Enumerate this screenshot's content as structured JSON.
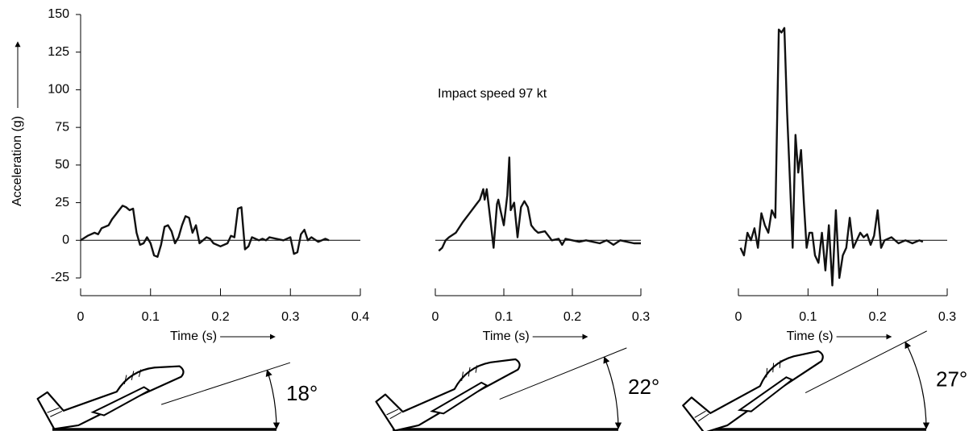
{
  "chart_data": [
    {
      "type": "line",
      "ylabel": "Acceleration (g)",
      "ylim": [
        -25,
        150
      ],
      "yticks": [
        -25,
        0,
        25,
        50,
        75,
        100,
        125,
        150
      ],
      "xlabel": "Time (s)",
      "xlim": [
        0,
        0.4
      ],
      "xticks": [
        0,
        0.1,
        0.2,
        0.3,
        0.4
      ],
      "color": "#111111",
      "angle": {
        "value": 18,
        "label": "18°"
      },
      "x": [
        0,
        0.01,
        0.02,
        0.025,
        0.03,
        0.04,
        0.045,
        0.05,
        0.055,
        0.06,
        0.065,
        0.07,
        0.075,
        0.08,
        0.085,
        0.09,
        0.095,
        0.1,
        0.105,
        0.11,
        0.115,
        0.12,
        0.125,
        0.13,
        0.135,
        0.14,
        0.145,
        0.15,
        0.155,
        0.16,
        0.165,
        0.17,
        0.175,
        0.18,
        0.185,
        0.19,
        0.2,
        0.21,
        0.215,
        0.22,
        0.225,
        0.23,
        0.235,
        0.24,
        0.245,
        0.25,
        0.255,
        0.26,
        0.265,
        0.27,
        0.28,
        0.29,
        0.3,
        0.305,
        0.31,
        0.315,
        0.32,
        0.325,
        0.33,
        0.34,
        0.35,
        0.355
      ],
      "values": [
        0,
        3,
        5,
        4,
        8,
        10,
        14,
        17,
        20,
        23,
        22,
        20,
        21,
        5,
        -3,
        -2,
        2,
        -2,
        -10,
        -11,
        -3,
        9,
        10,
        6,
        -2,
        2,
        10,
        16,
        15,
        5,
        10,
        -2,
        0,
        2,
        1,
        -2,
        -4,
        -2,
        3,
        2,
        21,
        22,
        -6,
        -4,
        2,
        1,
        0,
        1,
        0,
        2,
        1,
        0,
        2,
        -9,
        -8,
        4,
        7,
        0,
        2,
        -1,
        1,
        0
      ]
    },
    {
      "type": "line",
      "annotation": "Impact speed 97 kt",
      "ylim": [
        -25,
        150
      ],
      "xlabel": "Time (s)",
      "xlim": [
        0,
        0.3
      ],
      "xticks": [
        0,
        0.1,
        0.2,
        0.3
      ],
      "color": "#111111",
      "angle": {
        "value": 22,
        "label": "22°"
      },
      "x": [
        0.005,
        0.01,
        0.015,
        0.02,
        0.03,
        0.04,
        0.05,
        0.06,
        0.065,
        0.07,
        0.072,
        0.075,
        0.08,
        0.085,
        0.09,
        0.092,
        0.095,
        0.1,
        0.105,
        0.108,
        0.11,
        0.115,
        0.12,
        0.125,
        0.13,
        0.135,
        0.14,
        0.145,
        0.15,
        0.16,
        0.165,
        0.17,
        0.18,
        0.185,
        0.19,
        0.2,
        0.21,
        0.22,
        0.23,
        0.24,
        0.25,
        0.26,
        0.27,
        0.28,
        0.29,
        0.3
      ],
      "values": [
        -7,
        -5,
        0,
        2,
        5,
        12,
        18,
        24,
        27,
        34,
        27,
        34,
        15,
        -5,
        24,
        27,
        20,
        10,
        30,
        55,
        20,
        25,
        2,
        22,
        26,
        22,
        10,
        7,
        5,
        6,
        3,
        0,
        1,
        -3,
        1,
        0,
        -1,
        0,
        -1,
        -2,
        0,
        -3,
        0,
        -1,
        -2,
        -2
      ]
    },
    {
      "type": "line",
      "ylim": [
        -25,
        150
      ],
      "xlabel": "Time (s)",
      "xlim": [
        0,
        0.3
      ],
      "xticks": [
        0,
        0.1,
        0.2,
        0.3
      ],
      "color": "#111111",
      "angle": {
        "value": 27,
        "label": "27°"
      },
      "x": [
        0.003,
        0.008,
        0.013,
        0.018,
        0.023,
        0.028,
        0.033,
        0.038,
        0.043,
        0.048,
        0.053,
        0.058,
        0.062,
        0.066,
        0.07,
        0.074,
        0.078,
        0.082,
        0.086,
        0.09,
        0.094,
        0.098,
        0.102,
        0.106,
        0.11,
        0.115,
        0.12,
        0.125,
        0.13,
        0.135,
        0.14,
        0.145,
        0.15,
        0.155,
        0.16,
        0.165,
        0.17,
        0.175,
        0.18,
        0.185,
        0.19,
        0.195,
        0.2,
        0.205,
        0.21,
        0.22,
        0.23,
        0.24,
        0.25,
        0.26,
        0.265
      ],
      "values": [
        -5,
        -10,
        5,
        0,
        8,
        -5,
        18,
        10,
        5,
        20,
        15,
        140,
        138,
        141,
        85,
        40,
        -5,
        70,
        45,
        60,
        25,
        -5,
        5,
        5,
        -10,
        -15,
        5,
        -20,
        10,
        -30,
        20,
        -25,
        -10,
        -5,
        15,
        -5,
        0,
        5,
        2,
        4,
        -3,
        3,
        20,
        -5,
        0,
        2,
        -2,
        0,
        -2,
        0,
        -1
      ]
    }
  ]
}
